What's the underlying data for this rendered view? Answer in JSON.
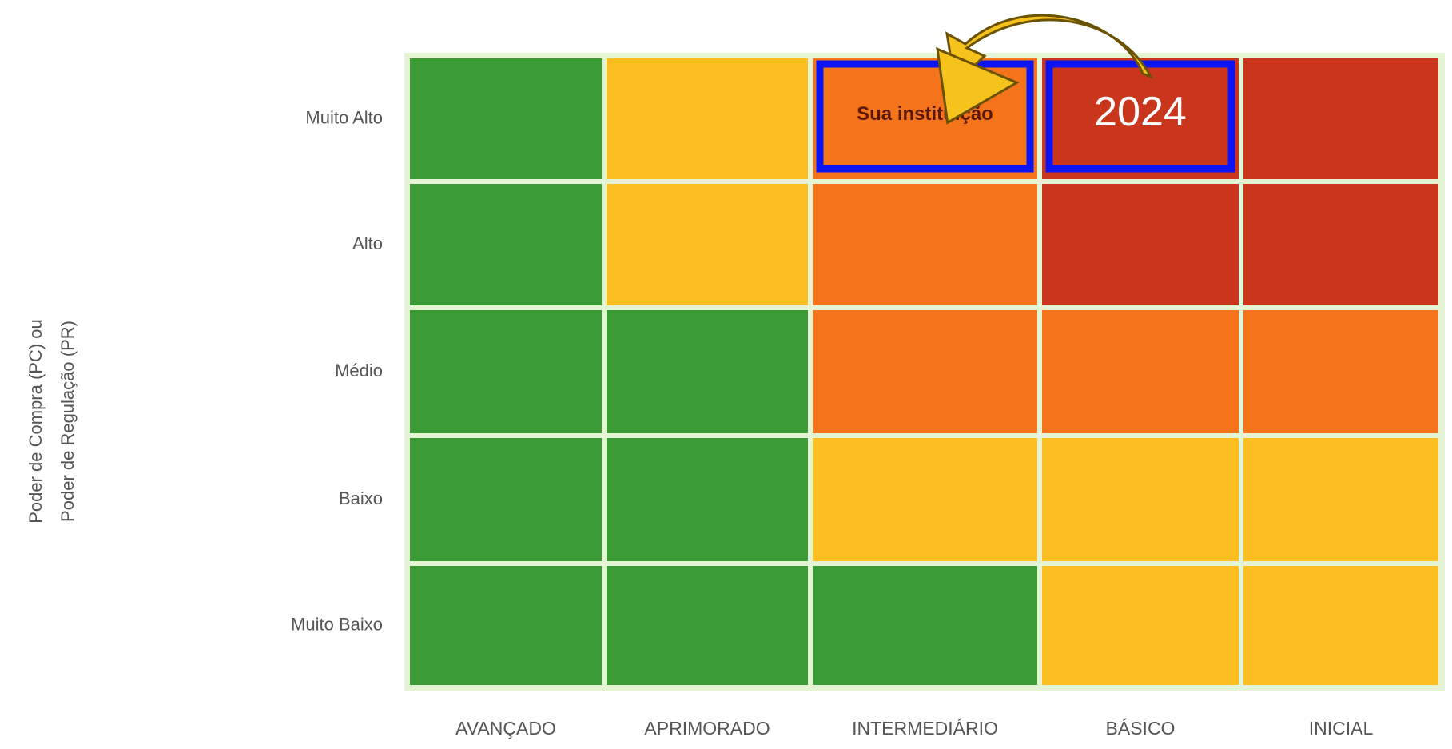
{
  "y_axis_title": [
    "Poder de Compra (PC) ou",
    "Poder de Regulação (PR)"
  ],
  "rows": [
    "Muito Alto",
    "Alto",
    "Médio",
    "Baixo",
    "Muito Baixo"
  ],
  "columns": [
    "AVANÇADO",
    "APRIMORADO",
    "INTERMEDIÁRIO",
    "BÁSICO",
    "INICIAL"
  ],
  "cell_colors": [
    [
      "#3a9b35",
      "#fbbf22",
      "#f5731a",
      "#c9361b",
      "#c9361b"
    ],
    [
      "#3a9b35",
      "#fbbf22",
      "#f5731a",
      "#c9361b",
      "#c9361b"
    ],
    [
      "#3a9b35",
      "#3a9b35",
      "#f5731a",
      "#f5731a",
      "#f5731a"
    ],
    [
      "#3a9b35",
      "#3a9b35",
      "#fbbf22",
      "#fbbf22",
      "#fbbf22"
    ],
    [
      "#3a9b35",
      "#3a9b35",
      "#3a9b35",
      "#fbbf22",
      "#fbbf22"
    ]
  ],
  "annotations": [
    {
      "text": "Sua instituição",
      "row": 0,
      "column": 2
    },
    {
      "text": "2024",
      "row": 0,
      "column": 3
    }
  ],
  "highlight_color": "#0a14f5"
}
